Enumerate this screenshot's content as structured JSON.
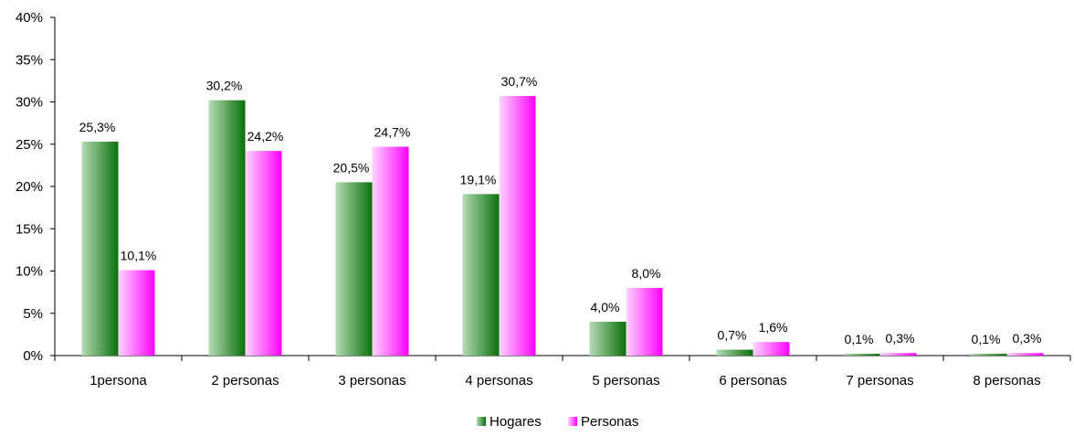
{
  "chart_data": {
    "type": "bar",
    "categories": [
      "1persona",
      "2 personas",
      "3 personas",
      "4 personas",
      "5 personas",
      "6 personas",
      "7 personas",
      "8 personas"
    ],
    "series": [
      {
        "name": "Hogares",
        "values": [
          25.3,
          30.2,
          20.5,
          19.1,
          4.0,
          0.7,
          0.1,
          0.1
        ],
        "labels": [
          "25,3%",
          "30,2%",
          "20,5%",
          "19,1%",
          "4,0%",
          "0,7%",
          "0,1%",
          "0,1%"
        ],
        "color_light": "#a9d8a9",
        "color_dark": "#0f7a0f"
      },
      {
        "name": "Personas",
        "values": [
          10.1,
          24.2,
          24.7,
          30.7,
          8.0,
          1.6,
          0.3,
          0.3
        ],
        "labels": [
          "10,1%",
          "24,2%",
          "24,7%",
          "30,7%",
          "8,0%",
          "1,6%",
          "0,3%",
          "0,3%"
        ],
        "color_light": "#ffd0ff",
        "color_dark": "#ff00ff"
      }
    ],
    "ylim": [
      0,
      40
    ],
    "yticks": [
      "0%",
      "5%",
      "10%",
      "15%",
      "20%",
      "25%",
      "30%",
      "35%",
      "40%"
    ],
    "ytick_values": [
      0,
      5,
      10,
      15,
      20,
      25,
      30,
      35,
      40
    ],
    "grid": false,
    "legend_position": "bottom-center"
  }
}
